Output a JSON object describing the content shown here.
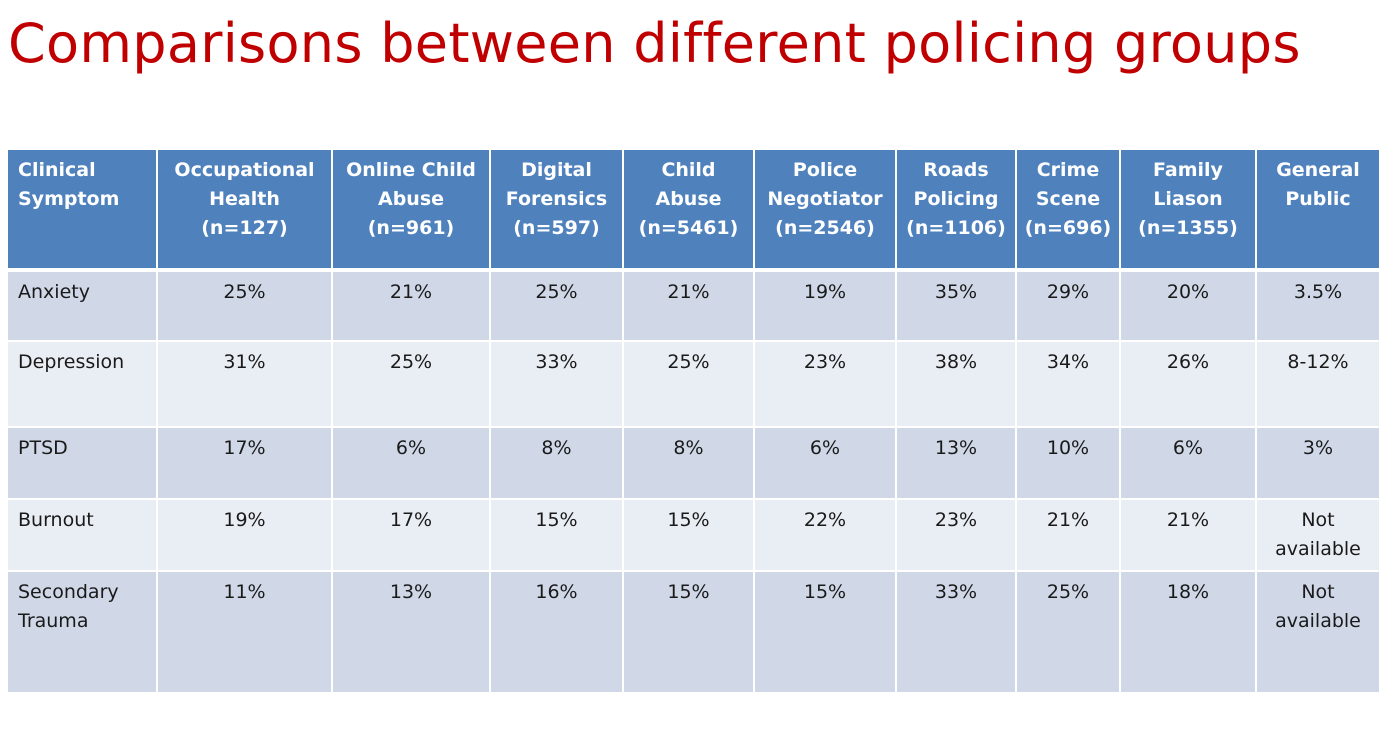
{
  "title": "Comparisons between different policing groups",
  "table": {
    "headers": [
      "Clinical Symptom",
      "Occupational Health (n=127)",
      "Online Child Abuse (n=961)",
      "Digital Forensics (n=597)",
      "Child Abuse (n=5461)",
      "Police Negotiator (n=2546)",
      "Roads Policing (n=1106)",
      "Crime Scene (n=696)",
      "Family Liason (n=1355)",
      "General Public"
    ],
    "rows": [
      [
        "Anxiety",
        "25%",
        "21%",
        "25%",
        "21%",
        "19%",
        "35%",
        "29%",
        "20%",
        "3.5%"
      ],
      [
        "Depression",
        "31%",
        "25%",
        "33%",
        "25%",
        "23%",
        "38%",
        "34%",
        "26%",
        "8-12%"
      ],
      [
        "PTSD",
        "17%",
        "6%",
        "8%",
        "8%",
        "6%",
        "13%",
        "10%",
        "6%",
        "3%"
      ],
      [
        "Burnout",
        "19%",
        "17%",
        "15%",
        "15%",
        "22%",
        "23%",
        "21%",
        "21%",
        "Not available"
      ],
      [
        "Secondary Trauma",
        "11%",
        "13%",
        "16%",
        "15%",
        "15%",
        "33%",
        "25%",
        "18%",
        "Not available"
      ]
    ]
  },
  "colors": {
    "title": "#c00000",
    "header_bg": "#4f81bd",
    "row_odd_bg": "#d0d8e8",
    "row_even_bg": "#e9edf4"
  }
}
